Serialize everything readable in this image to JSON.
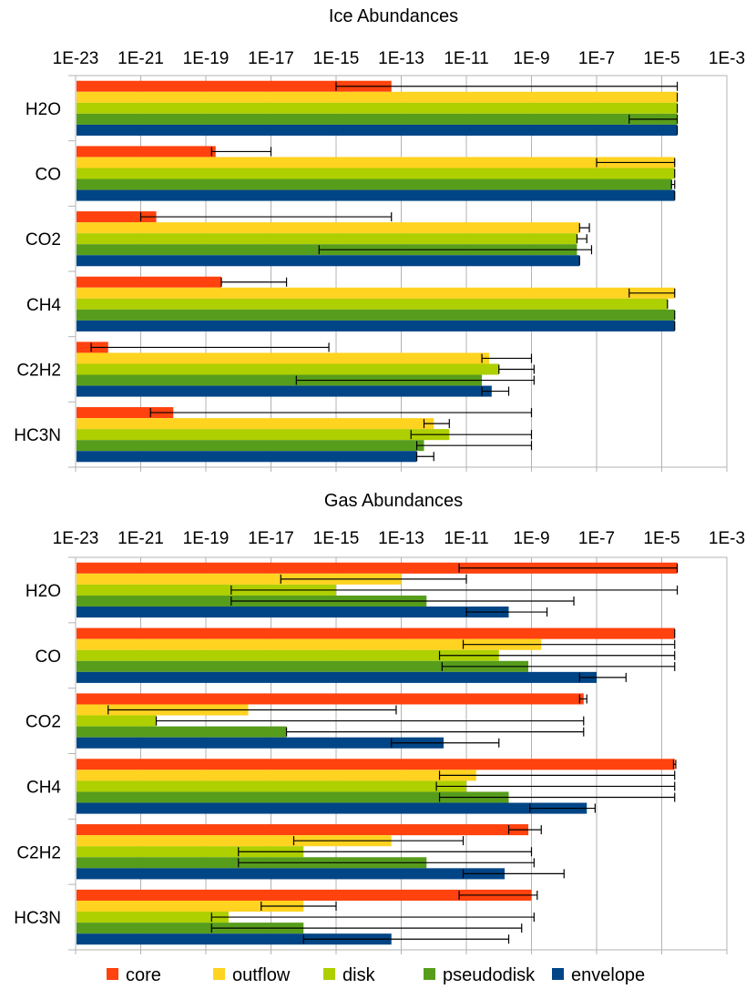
{
  "chart_data": [
    {
      "type": "bar",
      "orientation": "horizontal",
      "scale": "log10",
      "title": "Ice Abundances",
      "xlim": [
        1e-23,
        0.001
      ],
      "xticks": [
        "1E-23",
        "1E-21",
        "1E-19",
        "1E-17",
        "1E-15",
        "1E-13",
        "1E-11",
        "1E-9",
        "1E-7",
        "1E-5",
        "1E-3"
      ],
      "categories": [
        "H2O",
        "CO",
        "CO2",
        "CH4",
        "C2H2",
        "HC3N"
      ],
      "series": [
        {
          "name": "core",
          "values": [
            5e-14,
            2e-19,
            3e-21,
            3e-19,
            1e-22,
            1e-20
          ],
          "err_low": [
            1e-15,
            1.5e-19,
            1e-21,
            3e-19,
            3e-23,
            2e-21
          ],
          "err_high": [
            3e-05,
            1e-17,
            5e-14,
            3e-17,
            6e-16,
            1e-09
          ]
        },
        {
          "name": "outflow",
          "values": [
            3e-05,
            2.5e-05,
            3e-08,
            2.5e-05,
            5e-11,
            1e-12
          ],
          "err_low": [
            3e-05,
            1e-07,
            3e-08,
            1e-06,
            3e-11,
            5e-13
          ],
          "err_high": [
            3e-05,
            2.5e-05,
            6e-08,
            2.5e-05,
            1e-09,
            3e-12
          ]
        },
        {
          "name": "disk",
          "values": [
            3e-05,
            2.5e-05,
            2.5e-08,
            1.5e-05,
            1e-10,
            3e-12
          ],
          "err_low": [
            3e-05,
            2.5e-05,
            2.5e-08,
            1.5e-05,
            1e-10,
            2e-13
          ],
          "err_high": [
            3e-05,
            2.5e-05,
            5e-08,
            1.5e-05,
            1.2e-09,
            1e-09
          ]
        },
        {
          "name": "pseudodisk",
          "values": [
            3e-05,
            2e-05,
            2.5e-08,
            2.5e-05,
            3e-11,
            5e-13
          ],
          "err_low": [
            1e-06,
            2e-05,
            3e-16,
            2.5e-05,
            6e-17,
            3e-13
          ],
          "err_high": [
            3e-05,
            2.5e-05,
            7e-08,
            2.5e-05,
            1.2e-09,
            1e-09
          ]
        },
        {
          "name": "envelope",
          "values": [
            3e-05,
            2.5e-05,
            3e-08,
            2.5e-05,
            6e-11,
            3e-13
          ],
          "err_low": [
            3e-05,
            2.5e-05,
            3e-08,
            2.5e-05,
            3e-11,
            3e-13
          ],
          "err_high": [
            3e-05,
            2.5e-05,
            3e-08,
            2.5e-05,
            2e-10,
            1e-12
          ]
        }
      ]
    },
    {
      "type": "bar",
      "orientation": "horizontal",
      "scale": "log10",
      "title": "Gas Abundances",
      "xlim": [
        1e-23,
        0.001
      ],
      "xticks": [
        "1E-23",
        "1E-21",
        "1E-19",
        "1E-17",
        "1E-15",
        "1E-13",
        "1E-11",
        "1E-9",
        "1E-7",
        "1E-5",
        "1E-3"
      ],
      "categories": [
        "H2O",
        "CO",
        "CO2",
        "CH4",
        "C2H2",
        "HC3N"
      ],
      "series": [
        {
          "name": "core",
          "values": [
            3e-05,
            2.5e-05,
            4e-08,
            2.5e-05,
            8e-10,
            1e-09
          ],
          "err_low": [
            6e-12,
            2.5e-05,
            3e-08,
            2.3e-05,
            2e-10,
            6e-12
          ],
          "err_high": [
            3e-05,
            2.5e-05,
            5e-08,
            2.7e-05,
            2e-09,
            1.5e-09
          ]
        },
        {
          "name": "outflow",
          "values": [
            1e-13,
            2e-09,
            2e-18,
            2e-11,
            5e-14,
            1e-16
          ],
          "err_low": [
            2e-17,
            8e-12,
            1e-22,
            1.5e-12,
            5e-17,
            5e-18
          ],
          "err_high": [
            1e-11,
            2.5e-05,
            7e-14,
            2.5e-05,
            8e-12,
            1e-15
          ]
        },
        {
          "name": "disk",
          "values": [
            1e-15,
            1e-10,
            3e-21,
            1e-11,
            1e-16,
            5e-19
          ],
          "err_low": [
            6e-19,
            1.5e-12,
            3e-21,
            1.2e-12,
            1e-18,
            1.5e-19
          ],
          "err_high": [
            3e-05,
            2.5e-05,
            4e-08,
            2.5e-05,
            1e-09,
            1.2e-09
          ]
        },
        {
          "name": "pseudodisk",
          "values": [
            6e-13,
            8e-10,
            3e-17,
            2e-10,
            6e-13,
            1e-16
          ],
          "err_low": [
            6e-19,
            1.8e-12,
            3e-17,
            1.5e-12,
            1e-18,
            1.5e-19
          ],
          "err_high": [
            2e-08,
            2.5e-05,
            4e-08,
            2.5e-05,
            1.2e-09,
            5e-10
          ]
        },
        {
          "name": "envelope",
          "values": [
            2e-10,
            1e-07,
            2e-12,
            5e-08,
            1.5e-10,
            5e-14
          ],
          "err_low": [
            1e-11,
            3e-08,
            5e-14,
            9e-10,
            8e-12,
            1e-16
          ],
          "err_high": [
            3e-09,
            8e-07,
            1e-10,
            9e-08,
            1e-08,
            2e-10
          ]
        }
      ]
    }
  ],
  "legend": {
    "items": [
      {
        "name": "core",
        "color": "#ff420e"
      },
      {
        "name": "outflow",
        "color": "#ffd320"
      },
      {
        "name": "disk",
        "color": "#aecf00"
      },
      {
        "name": "pseudodisk",
        "color": "#579d1c"
      },
      {
        "name": "envelope",
        "color": "#004586"
      }
    ]
  }
}
